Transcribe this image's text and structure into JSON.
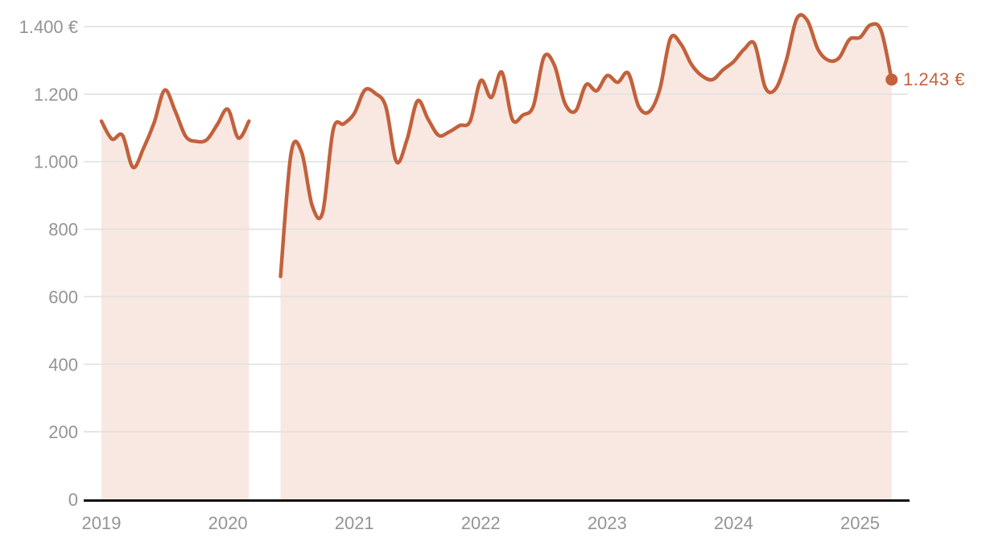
{
  "chart": {
    "end_label": "1.243 €",
    "colors": {
      "line": "#c2613c",
      "area": "#f8e8e1",
      "grid": "#e2e2e2",
      "axis": "#111111",
      "tick_text": "#949494",
      "end_label_text": "#c2613c"
    }
  },
  "chart_data": {
    "type": "line",
    "title": "",
    "xlabel": "",
    "ylabel": "",
    "unit": "EUR",
    "ylim": [
      0,
      1400
    ],
    "grid": "horizontal",
    "legend": "none",
    "area_fill": true,
    "smoothing": "spline",
    "gap_months": [
      "2020-04",
      "2020-05"
    ],
    "last_point_label": "1.243 €",
    "last_point_value": 1243,
    "y_tick_labels": [
      "0",
      "200",
      "400",
      "600",
      "800",
      "1.000",
      "1.200",
      "1.400 €"
    ],
    "x_tick_labels": [
      "2019",
      "2020",
      "2021",
      "2022",
      "2023",
      "2024",
      "2025"
    ],
    "x": [
      "2019-01",
      "2019-02",
      "2019-03",
      "2019-04",
      "2019-05",
      "2019-06",
      "2019-07",
      "2019-08",
      "2019-09",
      "2019-10",
      "2019-11",
      "2019-12",
      "2020-01",
      "2020-02",
      "2020-03",
      "2020-04",
      "2020-05",
      "2020-06",
      "2020-07",
      "2020-08",
      "2020-09",
      "2020-10",
      "2020-11",
      "2020-12",
      "2021-01",
      "2021-02",
      "2021-03",
      "2021-04",
      "2021-05",
      "2021-06",
      "2021-07",
      "2021-08",
      "2021-09",
      "2021-10",
      "2021-11",
      "2021-12",
      "2022-01",
      "2022-02",
      "2022-03",
      "2022-04",
      "2022-05",
      "2022-06",
      "2022-07",
      "2022-08",
      "2022-09",
      "2022-10",
      "2022-11",
      "2022-12",
      "2023-01",
      "2023-02",
      "2023-03",
      "2023-04",
      "2023-05",
      "2023-06",
      "2023-07",
      "2023-08",
      "2023-09",
      "2023-10",
      "2023-11",
      "2023-12",
      "2024-01",
      "2024-02",
      "2024-03",
      "2024-04",
      "2024-05",
      "2024-06",
      "2024-07",
      "2024-08",
      "2024-09",
      "2024-10",
      "2024-11",
      "2024-12",
      "2025-01",
      "2025-02",
      "2025-03",
      "2025-04"
    ],
    "values": [
      1120,
      1067,
      1078,
      983,
      1040,
      1115,
      1212,
      1150,
      1075,
      1060,
      1065,
      1110,
      1155,
      1070,
      1120,
      null,
      null,
      660,
      1025,
      1028,
      870,
      850,
      1095,
      1112,
      1143,
      1212,
      1202,
      1162,
      1000,
      1065,
      1180,
      1126,
      1078,
      1088,
      1107,
      1120,
      1240,
      1190,
      1265,
      1125,
      1138,
      1165,
      1310,
      1285,
      1172,
      1150,
      1228,
      1210,
      1255,
      1235,
      1262,
      1163,
      1148,
      1215,
      1365,
      1348,
      1288,
      1254,
      1243,
      1272,
      1296,
      1333,
      1348,
      1220,
      1216,
      1300,
      1424,
      1418,
      1333,
      1300,
      1307,
      1362,
      1368,
      1405,
      1388,
      1243
    ]
  }
}
